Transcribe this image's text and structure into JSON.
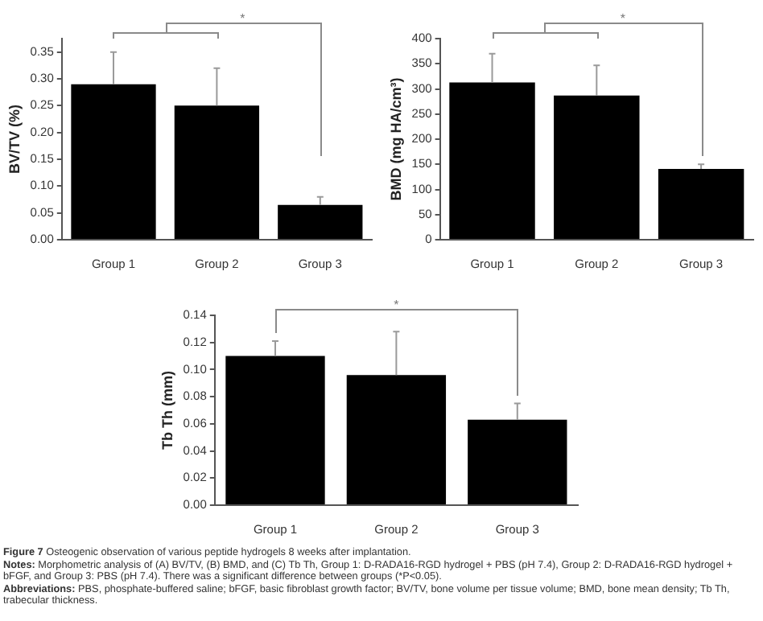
{
  "chart_data": [
    {
      "type": "bar",
      "ylabel": "BV/TV (%)",
      "categories": [
        "Group 1",
        "Group 2",
        "Group 3"
      ],
      "values": [
        0.29,
        0.25,
        0.065
      ],
      "color": "#000000",
      "errors": [
        [
          0.29,
          0.35
        ],
        [
          0.25,
          0.32
        ],
        [
          0.065,
          0.08
        ]
      ],
      "ylim": [
        0,
        0.375
      ],
      "yticks": [
        {
          "value": 0,
          "label": "0.00"
        },
        {
          "value": 0.05,
          "label": "0.05"
        },
        {
          "value": 0.1,
          "label": "0.10"
        },
        {
          "value": 0.15,
          "label": "0.15"
        },
        {
          "value": 0.2,
          "label": "0.20"
        },
        {
          "value": 0.25,
          "label": "0.25"
        },
        {
          "value": 0.3,
          "label": "0.30"
        },
        {
          "value": 0.35,
          "label": "0.35"
        }
      ],
      "annotations": [
        "*"
      ],
      "legend": false
    },
    {
      "type": "bar",
      "ylabel": "BMD (mg HA/cm³)",
      "categories": [
        "Group 1",
        "Group 2",
        "Group 3"
      ],
      "values": [
        313,
        287,
        141
      ],
      "color": "#000000",
      "errors": [
        [
          313,
          370
        ],
        [
          287,
          347
        ],
        [
          141,
          150
        ]
      ],
      "ylim": [
        0,
        400
      ],
      "yticks": [
        0,
        50,
        100,
        150,
        200,
        250,
        300,
        350,
        400
      ],
      "annotations": [
        "*"
      ],
      "legend": false
    },
    {
      "type": "bar",
      "ylabel": "Tb Th (mm)",
      "categories": [
        "Group 1",
        "Group 2",
        "Group 3"
      ],
      "values": [
        0.11,
        0.096,
        0.063
      ],
      "color": "#000000",
      "errors": [
        [
          0.11,
          0.121
        ],
        [
          0.096,
          0.128
        ],
        [
          0.063,
          0.075
        ]
      ],
      "ylim": [
        0,
        0.14
      ],
      "yticks": [
        {
          "value": 0,
          "label": "0.00"
        },
        {
          "value": 0.02,
          "label": "0.02"
        },
        {
          "value": 0.04,
          "label": "0.04"
        },
        {
          "value": 0.06,
          "label": "0.06"
        },
        {
          "value": 0.08,
          "label": "0.08"
        },
        {
          "value": 0.1,
          "label": "0.10"
        },
        {
          "value": 0.12,
          "label": "0.12"
        },
        {
          "value": 0.14,
          "label": "0.14"
        }
      ],
      "annotations": [
        "*"
      ],
      "legend": false
    },
    {
      "type": "other",
      "title": "Figure 7 Osteogenic observation of various peptide hydrogels 8 weeks after implantation.",
      "annotations": [
        "Notes: Morphometric analysis of (A) BV/TV, (B) BMD, and (C) Tb Th, Group 1: D-RADA16-RGD hydrogel + PBS (pH 7.4), Group 2: D-RADA16-RGD hydrogel + bFGF, and Group 3: PBS (pH 7.4). There was a significant difference between groups (*P<0.05).",
        "Abbreviations: PBS, phosphate-buffered saline; bFGF, basic fibroblast growth factor; BV/TV, bone volume per tissue volume; BMD, bone mean density; Tb Th, trabecular thickness."
      ]
    }
  ]
}
